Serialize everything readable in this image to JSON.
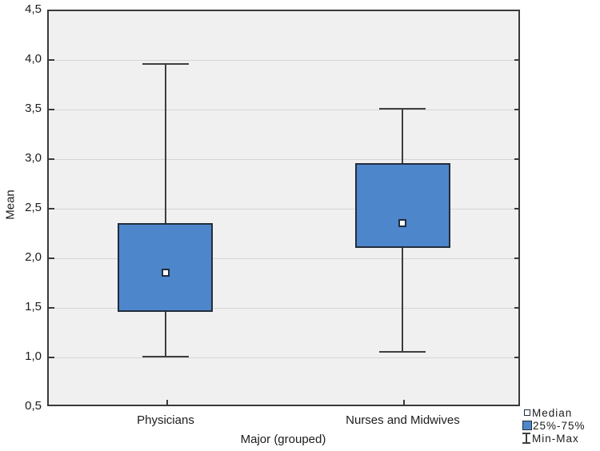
{
  "chart_data": {
    "type": "box",
    "title": "",
    "xlabel": "Major (grouped)",
    "ylabel": "Mean",
    "ylim": [
      0.5,
      4.5
    ],
    "ytick_step": 0.5,
    "yticks": [
      {
        "value": 0.5,
        "label": "0,5"
      },
      {
        "value": 1.0,
        "label": "1,0"
      },
      {
        "value": 1.5,
        "label": "1,5"
      },
      {
        "value": 2.0,
        "label": "2,0"
      },
      {
        "value": 2.5,
        "label": "2,5"
      },
      {
        "value": 3.0,
        "label": "3,0"
      },
      {
        "value": 3.5,
        "label": "3,5"
      },
      {
        "value": 4.0,
        "label": "4,0"
      },
      {
        "value": 4.5,
        "label": "4,5"
      }
    ],
    "categories": [
      "Physicians",
      "Nurses and Midwives"
    ],
    "category_positions": [
      0.2504,
      0.752
    ],
    "series": [
      {
        "category": "Physicians",
        "min": 1.0,
        "q1": 1.45,
        "median": 1.85,
        "q3": 2.35,
        "max": 3.95
      },
      {
        "category": "Nurses and Midwives",
        "min": 1.05,
        "q1": 2.1,
        "median": 2.35,
        "q3": 2.95,
        "max": 3.5
      }
    ],
    "grid": "horizontal",
    "legend_position": "bottom-right"
  },
  "legend": {
    "items": [
      {
        "icon": "median-marker-icon",
        "label": "Median"
      },
      {
        "icon": "iqr-box-icon",
        "label": "25%-75%"
      },
      {
        "icon": "minmax-whisker-icon",
        "label": "Min-Max"
      }
    ]
  },
  "colors": {
    "box_fill": "#4e86cb",
    "box_border": "#232d3c",
    "whisker": "#3f3f3f",
    "axis_border": "#3a3a3a",
    "plot_background": "#f0f0f0",
    "gridline": "#d6d6d6",
    "text": "#1c1c1c",
    "median_marker_fill": "#ffffff"
  }
}
